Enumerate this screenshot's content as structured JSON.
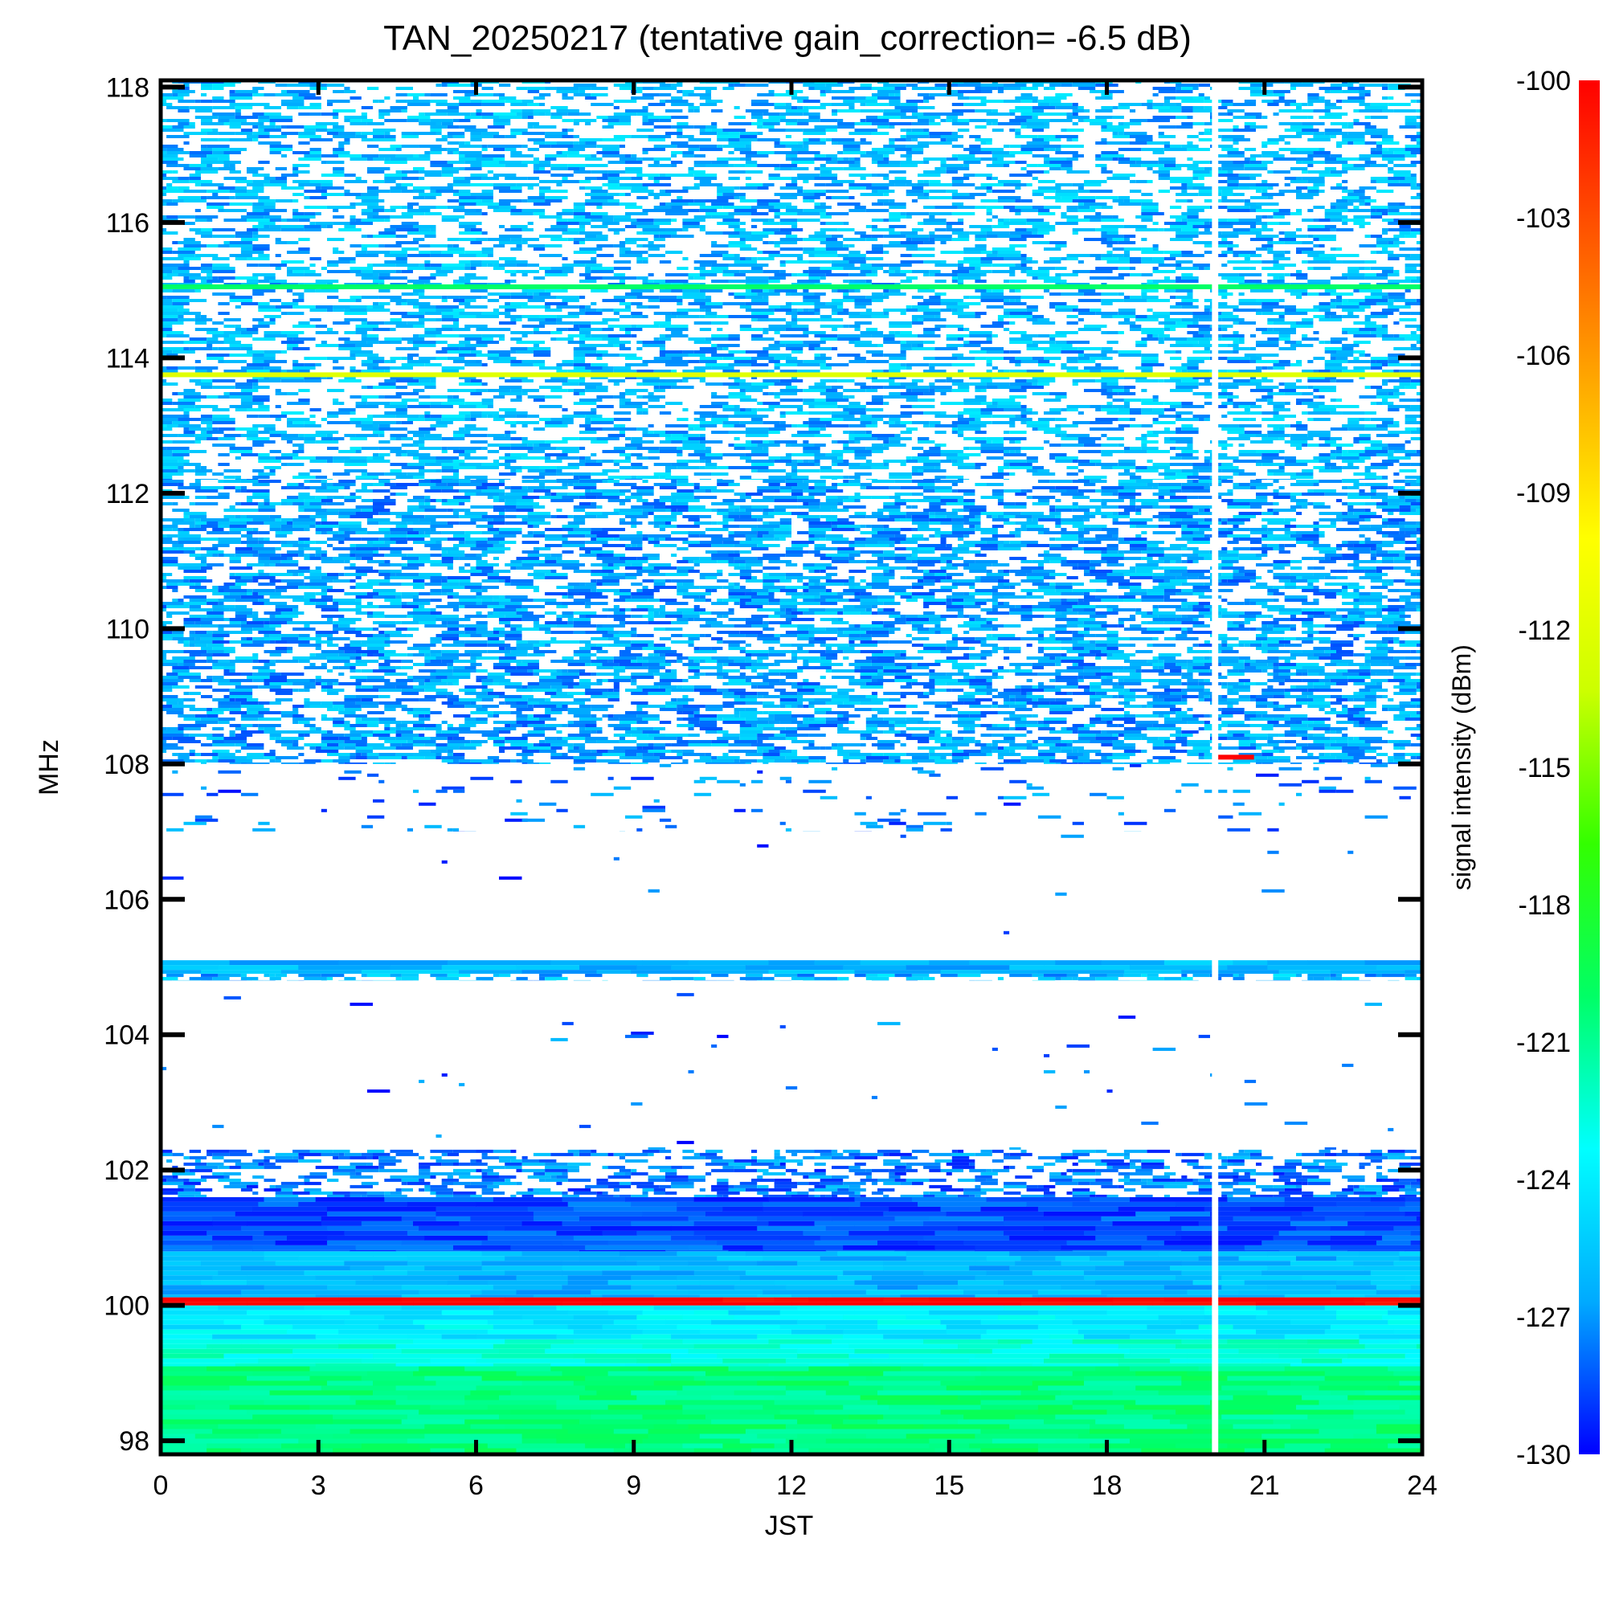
{
  "chart_data": {
    "type": "heatmap",
    "title": "TAN_20250217 (tentative gain_correction= -6.5 dB)",
    "xlabel": "JST",
    "ylabel": "MHz",
    "colorbar_label": "signal intensity (dBm)",
    "xlim": [
      0,
      24
    ],
    "ylim": [
      97.8,
      118.1
    ],
    "x_ticks": [
      0,
      3,
      6,
      9,
      12,
      15,
      18,
      21,
      24
    ],
    "y_ticks": [
      98,
      100,
      102,
      104,
      106,
      108,
      110,
      112,
      114,
      116,
      118
    ],
    "colorbar_range": [
      -130,
      -100
    ],
    "colorbar_ticks": [
      -100,
      -103,
      -106,
      -109,
      -112,
      -115,
      -118,
      -121,
      -124,
      -127,
      -130
    ],
    "colormap": [
      "#0000ff",
      "#00aaff",
      "#00ffff",
      "#00ff66",
      "#33ff00",
      "#ccff00",
      "#ffff00",
      "#ffaa00",
      "#ff5500",
      "#ff0000"
    ],
    "data_gap": {
      "x_start": 20.0,
      "x_end": 20.12
    },
    "bands": [
      {
        "y_from": 97.8,
        "y_to": 99.1,
        "level": -120.5,
        "coverage": 1.0
      },
      {
        "y_from": 99.1,
        "y_to": 99.5,
        "level": -122.5,
        "coverage": 1.0
      },
      {
        "y_from": 99.5,
        "y_to": 100.0,
        "level": -124.0,
        "coverage": 1.0
      },
      {
        "y_from": 100.0,
        "y_to": 100.12,
        "level": -100.0,
        "coverage": 1.0
      },
      {
        "y_from": 100.12,
        "y_to": 100.8,
        "level": -126.0,
        "coverage": 1.0
      },
      {
        "y_from": 100.8,
        "y_to": 101.6,
        "level": -128.5,
        "coverage": 1.0
      },
      {
        "y_from": 101.6,
        "y_to": 102.3,
        "level": -129.5,
        "coverage": 0.5
      },
      {
        "y_from": 102.3,
        "y_to": 104.9,
        "level": -130.0,
        "coverage": 0.01
      },
      {
        "y_from": 104.8,
        "y_to": 104.9,
        "level": -128.0,
        "coverage": 0.6
      },
      {
        "y_from": 104.9,
        "y_to": 105.1,
        "level": -126.0,
        "coverage": 1.0
      },
      {
        "y_from": 105.1,
        "y_to": 108.0,
        "level": -130.0,
        "coverage": 0.005
      },
      {
        "y_from": 107.0,
        "y_to": 108.0,
        "level": -129.5,
        "coverage": 0.06
      },
      {
        "y_from": 108.0,
        "y_to": 112.2,
        "level": -128.5,
        "coverage": 0.62
      },
      {
        "y_from": 112.2,
        "y_to": 118.1,
        "level": -128.0,
        "coverage": 0.5
      }
    ],
    "lines": [
      {
        "y": 113.75,
        "level": -112.0
      },
      {
        "y": 115.05,
        "level": -120.0
      },
      {
        "y": 108.1,
        "level": -100.0,
        "x_from": 20.1,
        "x_to": 20.8
      }
    ]
  }
}
